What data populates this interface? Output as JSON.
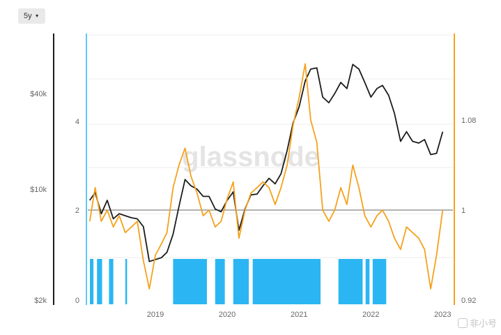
{
  "controls": {
    "range_label": "5y"
  },
  "watermark": {
    "brand": "glassnode",
    "footer": "非小号"
  },
  "colors": {
    "price": "#1b1b1b",
    "ratio": "#f5a11c",
    "band": "#2bb6f3",
    "grid": "#eeeeee",
    "baseline": "#666666",
    "left_axis": "#1b1b1b",
    "right_axis": "#f5a11c"
  },
  "chart_data": {
    "type": "line",
    "grid": true,
    "x_ticks": [
      "2019",
      "2020",
      "2021",
      "2022",
      "2023"
    ],
    "y_price_ticks": [
      "$2k",
      "$10k",
      "$40k"
    ],
    "y_mid_ticks": [
      "0",
      "2",
      "4"
    ],
    "y_ratio_ticks": [
      "0.92",
      "1",
      "1.08"
    ],
    "reference_line": 1,
    "series": [
      {
        "axis": "price",
        "log_scale": true,
        "points": [
          [
            "2018-02-01",
            8500
          ],
          [
            "2018-03-01",
            9500
          ],
          [
            "2018-04-01",
            7000
          ],
          [
            "2018-05-01",
            8500
          ],
          [
            "2018-06-01",
            6500
          ],
          [
            "2018-07-01",
            7000
          ],
          [
            "2018-08-01",
            6800
          ],
          [
            "2018-09-01",
            6600
          ],
          [
            "2018-10-01",
            6500
          ],
          [
            "2018-11-01",
            5800
          ],
          [
            "2018-12-01",
            3500
          ],
          [
            "2019-01-01",
            3600
          ],
          [
            "2019-02-01",
            3700
          ],
          [
            "2019-03-01",
            4000
          ],
          [
            "2019-04-01",
            5200
          ],
          [
            "2019-05-01",
            7800
          ],
          [
            "2019-06-01",
            11500
          ],
          [
            "2019-07-01",
            10500
          ],
          [
            "2019-08-01",
            10000
          ],
          [
            "2019-09-01",
            9000
          ],
          [
            "2019-10-01",
            9000
          ],
          [
            "2019-11-01",
            7500
          ],
          [
            "2019-12-01",
            7200
          ],
          [
            "2020-01-01",
            8500
          ],
          [
            "2020-02-01",
            9600
          ],
          [
            "2020-03-01",
            5500
          ],
          [
            "2020-04-01",
            7500
          ],
          [
            "2020-05-01",
            9200
          ],
          [
            "2020-06-01",
            9300
          ],
          [
            "2020-07-01",
            10500
          ],
          [
            "2020-08-01",
            11700
          ],
          [
            "2020-09-01",
            10800
          ],
          [
            "2020-10-01",
            12500
          ],
          [
            "2020-11-01",
            17500
          ],
          [
            "2020-12-01",
            26000
          ],
          [
            "2021-01-01",
            33000
          ],
          [
            "2021-02-01",
            48000
          ],
          [
            "2021-03-01",
            57000
          ],
          [
            "2021-04-01",
            58000
          ],
          [
            "2021-05-01",
            38000
          ],
          [
            "2021-06-01",
            35000
          ],
          [
            "2021-07-01",
            40000
          ],
          [
            "2021-08-01",
            47000
          ],
          [
            "2021-09-01",
            43000
          ],
          [
            "2021-10-01",
            61000
          ],
          [
            "2021-11-01",
            57000
          ],
          [
            "2021-12-01",
            47000
          ],
          [
            "2022-01-01",
            38000
          ],
          [
            "2022-02-01",
            43000
          ],
          [
            "2022-03-01",
            45000
          ],
          [
            "2022-04-01",
            39000
          ],
          [
            "2022-05-01",
            30000
          ],
          [
            "2022-06-01",
            20000
          ],
          [
            "2022-07-01",
            23000
          ],
          [
            "2022-08-01",
            20000
          ],
          [
            "2022-09-01",
            19500
          ],
          [
            "2022-10-01",
            20500
          ],
          [
            "2022-11-01",
            16500
          ],
          [
            "2022-12-01",
            16800
          ],
          [
            "2023-01-01",
            23000
          ]
        ]
      },
      {
        "axis": "ratio",
        "points": [
          [
            "2018-02-01",
            0.99
          ],
          [
            "2018-03-01",
            1.02
          ],
          [
            "2018-04-01",
            0.99
          ],
          [
            "2018-05-01",
            1.0
          ],
          [
            "2018-06-01",
            0.985
          ],
          [
            "2018-07-01",
            0.995
          ],
          [
            "2018-08-01",
            0.98
          ],
          [
            "2018-09-01",
            0.985
          ],
          [
            "2018-10-01",
            0.99
          ],
          [
            "2018-11-01",
            0.955
          ],
          [
            "2018-12-01",
            0.93
          ],
          [
            "2019-01-01",
            0.96
          ],
          [
            "2019-02-01",
            0.97
          ],
          [
            "2019-03-01",
            0.98
          ],
          [
            "2019-04-01",
            1.02
          ],
          [
            "2019-05-01",
            1.04
          ],
          [
            "2019-06-01",
            1.055
          ],
          [
            "2019-07-01",
            1.03
          ],
          [
            "2019-08-01",
            1.015
          ],
          [
            "2019-09-01",
            0.995
          ],
          [
            "2019-10-01",
            1.0
          ],
          [
            "2019-11-01",
            0.985
          ],
          [
            "2019-12-01",
            0.99
          ],
          [
            "2020-01-01",
            1.01
          ],
          [
            "2020-02-01",
            1.025
          ],
          [
            "2020-03-01",
            0.975
          ],
          [
            "2020-04-01",
            1.0
          ],
          [
            "2020-05-01",
            1.015
          ],
          [
            "2020-06-01",
            1.02
          ],
          [
            "2020-07-01",
            1.025
          ],
          [
            "2020-08-01",
            1.02
          ],
          [
            "2020-09-01",
            1.005
          ],
          [
            "2020-10-01",
            1.02
          ],
          [
            "2020-11-01",
            1.04
          ],
          [
            "2020-12-01",
            1.075
          ],
          [
            "2021-01-01",
            1.1
          ],
          [
            "2021-02-01",
            1.13
          ],
          [
            "2021-03-01",
            1.08
          ],
          [
            "2021-04-01",
            1.06
          ],
          [
            "2021-05-01",
            1.0
          ],
          [
            "2021-06-01",
            0.99
          ],
          [
            "2021-07-01",
            1.0
          ],
          [
            "2021-08-01",
            1.02
          ],
          [
            "2021-09-01",
            1.005
          ],
          [
            "2021-10-01",
            1.04
          ],
          [
            "2021-11-01",
            1.02
          ],
          [
            "2021-12-01",
            0.995
          ],
          [
            "2022-01-01",
            0.985
          ],
          [
            "2022-02-01",
            0.995
          ],
          [
            "2022-03-01",
            1.0
          ],
          [
            "2022-04-01",
            0.99
          ],
          [
            "2022-05-01",
            0.975
          ],
          [
            "2022-06-01",
            0.965
          ],
          [
            "2022-07-01",
            0.985
          ],
          [
            "2022-08-01",
            0.98
          ],
          [
            "2022-09-01",
            0.975
          ],
          [
            "2022-10-01",
            0.965
          ],
          [
            "2022-11-01",
            0.93
          ],
          [
            "2022-12-01",
            0.96
          ],
          [
            "2023-01-01",
            1.0
          ]
        ]
      }
    ],
    "bands": [
      [
        "2018-02-01",
        "2018-02-20"
      ],
      [
        "2018-03-10",
        "2018-04-05"
      ],
      [
        "2018-05-10",
        "2018-06-01"
      ],
      [
        "2018-08-01",
        "2018-08-10"
      ],
      [
        "2019-04-01",
        "2019-09-20"
      ],
      [
        "2019-11-01",
        "2019-12-20"
      ],
      [
        "2020-02-01",
        "2020-04-20"
      ],
      [
        "2020-05-10",
        "2021-04-20"
      ],
      [
        "2021-07-20",
        "2021-11-20"
      ],
      [
        "2021-12-05",
        "2021-12-25"
      ],
      [
        "2022-01-10",
        "2022-03-20"
      ]
    ]
  }
}
